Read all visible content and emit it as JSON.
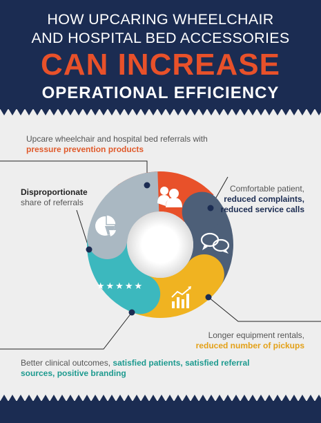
{
  "header": {
    "line1": "HOW UPCARING WHEELCHAIR",
    "line2": "AND HOSPITAL BED ACCESSORIES",
    "highlight": "CAN INCREASE",
    "line3": "OPERATIONAL EFFICIENCY"
  },
  "callouts": {
    "top": {
      "text": "Upcare wheelchair and hospital bed referrals with ",
      "bold": "pressure prevention products"
    },
    "left": {
      "bold": "Disproportionate",
      "text": "share of referrals"
    },
    "right": {
      "text": "Comfortable patient,",
      "bold": "reduced complaints, reduced service calls"
    },
    "lower_right": {
      "text": "Longer equipment rentals,",
      "bold": "reduced number of pickups"
    },
    "bottom": {
      "text": "Better clinical outcomes, ",
      "bold": "satisfied patients, satisfied referral sources, positive branding"
    }
  },
  "ring": {
    "segments": [
      {
        "name": "referrals",
        "color": "#e8512a",
        "icon": "people-icon"
      },
      {
        "name": "comfort",
        "color": "#4d5f78",
        "icon": "speech-bubbles-icon"
      },
      {
        "name": "rentals",
        "color": "#f0b321",
        "icon": "bar-chart-icon"
      },
      {
        "name": "outcomes",
        "color": "#3cb8be",
        "icon": "stars-icon"
      },
      {
        "name": "share",
        "color": "#aab8c2",
        "icon": "pie-chart-icon"
      }
    ],
    "stars": "★★★★★"
  }
}
